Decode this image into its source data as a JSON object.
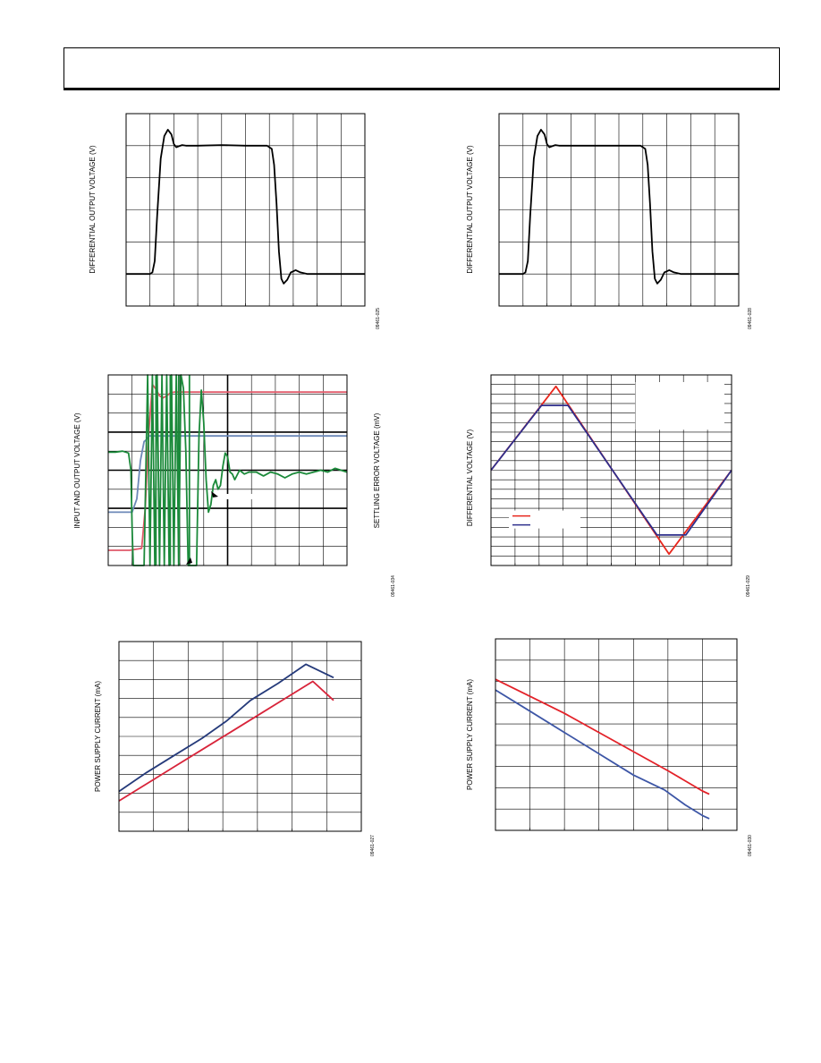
{
  "header": {
    "text": ""
  },
  "chart_data": [
    {
      "id": "c1",
      "type": "line",
      "ylabel": "DIFFERENTIAL OUTPUT VOLTAGE (V)",
      "figure_code": "09461-025",
      "grid": true,
      "xlim": [
        0,
        10
      ],
      "ylim": [
        0,
        6
      ],
      "series": [
        {
          "color": "#000000",
          "x": [
            0,
            1.0,
            1.1,
            1.2,
            1.3,
            1.45,
            1.6,
            1.75,
            1.9,
            2.0,
            2.1,
            2.2,
            2.35,
            2.5,
            3,
            4,
            5,
            5.9,
            6.1,
            6.2,
            6.3,
            6.4,
            6.5,
            6.6,
            6.75,
            6.9,
            7.1,
            7.3,
            7.6,
            8,
            10
          ],
          "y": [
            1,
            1,
            1.05,
            1.4,
            2.8,
            4.6,
            5.3,
            5.5,
            5.35,
            5.05,
            4.95,
            4.98,
            5.02,
            5.0,
            5.0,
            5.02,
            5.0,
            5.0,
            4.9,
            4.4,
            3.2,
            1.7,
            0.85,
            0.7,
            0.82,
            1.05,
            1.12,
            1.05,
            1.0,
            1.0,
            1.0
          ]
        }
      ]
    },
    {
      "id": "c2",
      "type": "line",
      "ylabel": "DIFFERENTIAL OUTPUT VOLTAGE (V)",
      "figure_code": "09461-028",
      "grid": true,
      "xlim": [
        0,
        10
      ],
      "ylim": [
        0,
        6
      ],
      "series": [
        {
          "color": "#000000",
          "x": [
            0,
            1.0,
            1.1,
            1.2,
            1.3,
            1.45,
            1.6,
            1.75,
            1.9,
            2.0,
            2.1,
            2.2,
            2.35,
            2.5,
            3,
            4,
            5,
            5.9,
            6.1,
            6.2,
            6.3,
            6.4,
            6.5,
            6.6,
            6.75,
            6.9,
            7.1,
            7.3,
            7.6,
            8,
            10
          ],
          "y": [
            1,
            1,
            1.05,
            1.4,
            2.8,
            4.6,
            5.3,
            5.5,
            5.35,
            5.05,
            4.95,
            4.98,
            5.02,
            5.0,
            5.0,
            5.0,
            5.0,
            5.0,
            4.9,
            4.4,
            3.2,
            1.7,
            0.85,
            0.7,
            0.82,
            1.05,
            1.12,
            1.05,
            1.0,
            1.0,
            1.0
          ]
        }
      ]
    },
    {
      "id": "c3",
      "type": "line",
      "ylabel": "INPUT AND OUTPUT VOLTAGE (V)",
      "ylabel2": "SETTLING ERROR VOLTAGE (mV)",
      "figure_code": "09461-034",
      "grid": true,
      "xlim": [
        0,
        10
      ],
      "ylim": [
        0,
        10
      ],
      "series": [
        {
          "color": "#e05a6a",
          "x": [
            0,
            0.9,
            1.4,
            1.55,
            1.7,
            1.85,
            2.0,
            2.15,
            2.3,
            2.45,
            2.6,
            2.75,
            2.9,
            3.1,
            3.3,
            3.6,
            4,
            10
          ],
          "y": [
            0.8,
            0.8,
            0.9,
            3,
            7,
            9.5,
            9.25,
            8.9,
            8.8,
            8.9,
            9.05,
            9.1,
            9.1,
            9.1,
            9.1,
            9.1,
            9.1,
            9.1
          ]
        },
        {
          "color": "#6c88b8",
          "x": [
            0,
            1.0,
            1.2,
            1.35,
            1.5,
            1.6,
            1.7,
            1.8,
            2,
            10
          ],
          "y": [
            2.8,
            2.8,
            3.5,
            5.5,
            6.5,
            6.6,
            6.8,
            6.8,
            6.8,
            6.8
          ]
        },
        {
          "color": "#1b8a3a",
          "x": [
            0,
            0.3,
            0.6,
            0.85,
            0.95,
            1.0,
            1.05,
            1.1,
            1.15,
            1.25,
            1.5,
            1.65,
            1.75,
            1.85,
            1.95,
            2.05,
            2.15,
            2.25,
            2.35,
            2.45,
            2.55,
            2.65,
            2.75,
            2.85,
            2.95,
            3.05,
            3.15,
            3.25,
            3.35,
            3.45,
            3.5,
            3.6,
            3.7,
            3.8,
            3.9,
            4.0,
            4.1,
            4.2,
            4.3,
            4.4,
            4.5,
            4.6,
            4.7,
            4.8,
            4.9,
            5.0,
            5.1,
            5.2,
            5.3,
            5.5,
            5.7,
            5.9,
            6.2,
            6.5,
            6.8,
            7.1,
            7.4,
            7.7,
            8.0,
            8.3,
            8.6,
            8.9,
            9.2,
            9.5,
            10
          ],
          "y": [
            5.95,
            5.95,
            6.0,
            5.9,
            5.0,
            2.0,
            0,
            0,
            0,
            0,
            0,
            10,
            0,
            10,
            0,
            10,
            0,
            10,
            0,
            10,
            0,
            10,
            0,
            10,
            0,
            10,
            9.3,
            6.0,
            0,
            0,
            0,
            0,
            0,
            6.8,
            9.2,
            7.5,
            4.5,
            2.8,
            3.2,
            4.2,
            4.5,
            4.0,
            4.2,
            5.2,
            5.9,
            5.7,
            4.9,
            4.8,
            4.5,
            5.0,
            4.8,
            4.9,
            4.9,
            4.7,
            4.9,
            4.8,
            4.6,
            4.8,
            4.9,
            4.8,
            4.9,
            5.0,
            4.9,
            5.1,
            4.9
          ]
        },
        {
          "color": "#1b8a3a",
          "x": [
            2.0,
            2.0
          ],
          "y": [
            0,
            10
          ]
        },
        {
          "color": "#1b8a3a",
          "x": [
            2.6,
            2.6
          ],
          "y": [
            0,
            10
          ]
        },
        {
          "color": "#1b8a3a",
          "x": [
            2.95,
            2.95
          ],
          "y": [
            0,
            10
          ]
        },
        {
          "color": "#1b8a3a",
          "x": [
            3.4,
            3.4
          ],
          "y": [
            0,
            10
          ]
        }
      ]
    },
    {
      "id": "c4",
      "type": "line",
      "ylabel": "DIFFERENTIAL VOLTAGE (V)",
      "figure_code": "09461-029",
      "grid": true,
      "xlim": [
        0,
        10
      ],
      "ylim": [
        -10,
        10
      ],
      "series": [
        {
          "color": "#e8261c",
          "x": [
            0,
            2.7,
            7.4,
            10
          ],
          "y": [
            0,
            8.8,
            -8.8,
            0
          ]
        },
        {
          "color": "#2e2f8c",
          "x": [
            0,
            2.1,
            3.2,
            6.9,
            8.1,
            10
          ],
          "y": [
            0,
            6.8,
            6.8,
            -6.8,
            -6.8,
            0
          ]
        }
      ],
      "legend": {
        "placement": "bottom-left",
        "entries": [
          {
            "color": "#e8261c"
          },
          {
            "color": "#2e2f8c"
          }
        ]
      },
      "annotation_box": {
        "placement": "top-right"
      }
    },
    {
      "id": "c5",
      "type": "line",
      "ylabel": "POWER SUPPLY CURRENT (mA)",
      "figure_code": "09461-027",
      "grid": true,
      "xlim": [
        0,
        7
      ],
      "ylim": [
        0,
        10
      ],
      "series": [
        {
          "color": "#253a7a",
          "x": [
            0,
            0.8,
            1.6,
            2.4,
            3.1,
            3.8,
            4.6,
            5.4,
            6.2
          ],
          "y": [
            2.1,
            3.1,
            4.0,
            4.9,
            5.8,
            6.9,
            7.8,
            8.8,
            8.1
          ]
        },
        {
          "color": "#d8243a",
          "x": [
            0,
            0.8,
            1.6,
            2.4,
            3.2,
            4.0,
            4.8,
            5.6,
            6.2
          ],
          "y": [
            1.6,
            2.5,
            3.4,
            4.3,
            5.2,
            6.1,
            7.0,
            7.9,
            6.9
          ]
        }
      ]
    },
    {
      "id": "c6",
      "type": "line",
      "ylabel": "POWER SUPPLY CURRENT (mA)",
      "figure_code": "09461-030",
      "grid": true,
      "xlim": [
        0,
        7
      ],
      "ylim": [
        0,
        9
      ],
      "series": [
        {
          "color": "#e32229",
          "x": [
            0,
            1,
            2,
            3,
            4,
            5,
            6,
            6.2
          ],
          "y": [
            7.1,
            6.3,
            5.5,
            4.6,
            3.7,
            2.8,
            1.85,
            1.7
          ]
        },
        {
          "color": "#3d56a6",
          "x": [
            0,
            1,
            2,
            3,
            4,
            4.9,
            5.5,
            6.0,
            6.2
          ],
          "y": [
            6.6,
            5.6,
            4.6,
            3.6,
            2.6,
            1.9,
            1.2,
            0.7,
            0.55
          ]
        }
      ]
    }
  ]
}
